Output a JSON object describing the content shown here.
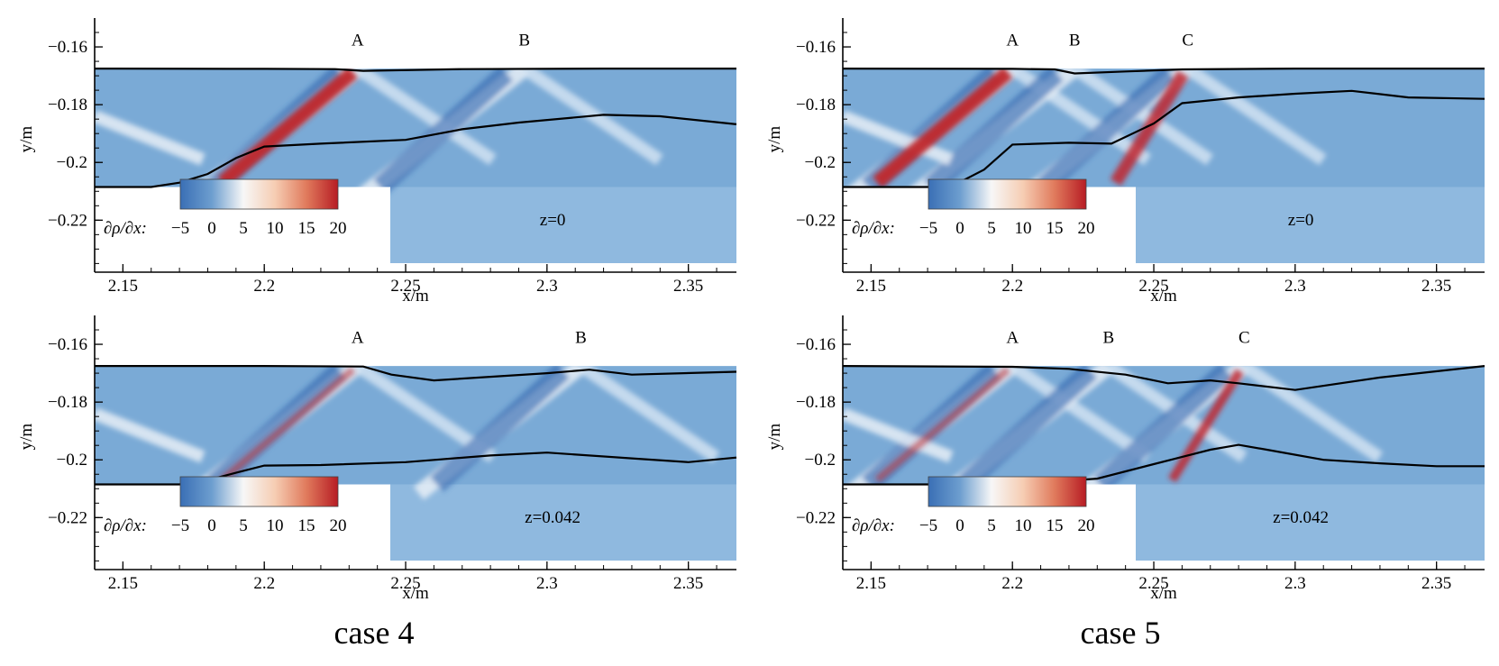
{
  "figure": {
    "captions": [
      "case 4",
      "case 5"
    ]
  },
  "colorbar": {
    "label": "∂ρ/∂x:",
    "ticks": [
      "−5",
      "0",
      "5",
      "10",
      "15",
      "20"
    ],
    "colors": [
      "#3a6fb5",
      "#ffffff",
      "#c0262d"
    ]
  },
  "chart_data": [
    {
      "type": "heatmap",
      "title": "case 4, z=0",
      "annotation": "z=0",
      "xlabel": "x/m",
      "ylabel": "y/m",
      "xlim": [
        2.14,
        2.367
      ],
      "ylim": [
        -0.238,
        -0.15
      ],
      "xticks": [
        2.15,
        2.2,
        2.25,
        2.3,
        2.35
      ],
      "xtick_labels": [
        "2.15",
        "2.2",
        "2.25",
        "2.3",
        "2.35"
      ],
      "yticks": [
        -0.16,
        -0.18,
        -0.2,
        -0.22
      ],
      "ytick_labels": [
        "−0.16",
        "−0.18",
        "−0.2",
        "−0.22"
      ],
      "markers": [
        {
          "label": "A",
          "x": 2.233
        },
        {
          "label": "B",
          "x": 2.292
        }
      ],
      "colorbar_range": [
        -5,
        20
      ],
      "series": [
        {
          "name": "upper boundary",
          "x": [
            2.14,
            2.2,
            2.225,
            2.235,
            2.27,
            2.32,
            2.367
          ],
          "y": [
            -0.1675,
            -0.1676,
            -0.1677,
            -0.1683,
            -0.1677,
            -0.1675,
            -0.1675
          ]
        },
        {
          "name": "lower boundary",
          "x": [
            2.14,
            2.16,
            2.17,
            2.18,
            2.19,
            2.2,
            2.22,
            2.25,
            2.27,
            2.29,
            2.32,
            2.34,
            2.367
          ],
          "y": [
            -0.2085,
            -0.2085,
            -0.207,
            -0.204,
            -0.1985,
            -0.1945,
            -0.1935,
            -0.1922,
            -0.1885,
            -0.1862,
            -0.1835,
            -0.184,
            -0.1868
          ]
        }
      ]
    },
    {
      "type": "heatmap",
      "title": "case 5, z=0",
      "annotation": "z=0",
      "xlabel": "x/m",
      "ylabel": "y/m",
      "xlim": [
        2.14,
        2.367
      ],
      "ylim": [
        -0.238,
        -0.15
      ],
      "xticks": [
        2.15,
        2.2,
        2.25,
        2.3,
        2.35
      ],
      "xtick_labels": [
        "2.15",
        "2.2",
        "2.25",
        "2.3",
        "2.35"
      ],
      "yticks": [
        -0.16,
        -0.18,
        -0.2,
        -0.22
      ],
      "ytick_labels": [
        "−0.16",
        "−0.18",
        "−0.2",
        "−0.22"
      ],
      "markers": [
        {
          "label": "A",
          "x": 2.2
        },
        {
          "label": "B",
          "x": 2.222
        },
        {
          "label": "C",
          "x": 2.262
        }
      ],
      "colorbar_range": [
        -5,
        20
      ],
      "series": [
        {
          "name": "upper boundary",
          "x": [
            2.14,
            2.2,
            2.215,
            2.222,
            2.24,
            2.26,
            2.3,
            2.367
          ],
          "y": [
            -0.1675,
            -0.1676,
            -0.1678,
            -0.1692,
            -0.1685,
            -0.1678,
            -0.1675,
            -0.1675
          ]
        },
        {
          "name": "lower boundary",
          "x": [
            2.14,
            2.17,
            2.18,
            2.19,
            2.2,
            2.22,
            2.235,
            2.25,
            2.26,
            2.28,
            2.3,
            2.32,
            2.34,
            2.367
          ],
          "y": [
            -0.2085,
            -0.2085,
            -0.2075,
            -0.2025,
            -0.1938,
            -0.1932,
            -0.1935,
            -0.1865,
            -0.1795,
            -0.1775,
            -0.1762,
            -0.1752,
            -0.1775,
            -0.178
          ]
        }
      ]
    },
    {
      "type": "heatmap",
      "title": "case 4, z=0.042",
      "annotation": "z=0.042",
      "xlabel": "x/m",
      "ylabel": "y/m",
      "xlim": [
        2.14,
        2.367
      ],
      "ylim": [
        -0.238,
        -0.15
      ],
      "xticks": [
        2.15,
        2.2,
        2.25,
        2.3,
        2.35
      ],
      "xtick_labels": [
        "2.15",
        "2.2",
        "2.25",
        "2.3",
        "2.35"
      ],
      "yticks": [
        -0.16,
        -0.18,
        -0.2,
        -0.22
      ],
      "ytick_labels": [
        "−0.16",
        "−0.18",
        "−0.2",
        "−0.22"
      ],
      "markers": [
        {
          "label": "A",
          "x": 2.233
        },
        {
          "label": "B",
          "x": 2.312
        }
      ],
      "colorbar_range": [
        -5,
        20
      ],
      "series": [
        {
          "name": "upper boundary",
          "x": [
            2.14,
            2.2,
            2.235,
            2.245,
            2.26,
            2.3,
            2.315,
            2.33,
            2.367
          ],
          "y": [
            -0.1675,
            -0.1675,
            -0.1677,
            -0.1705,
            -0.1725,
            -0.17,
            -0.1688,
            -0.1705,
            -0.1695
          ]
        },
        {
          "name": "lower boundary",
          "x": [
            2.14,
            2.17,
            2.18,
            2.19,
            2.2,
            2.22,
            2.25,
            2.28,
            2.3,
            2.33,
            2.35,
            2.367
          ],
          "y": [
            -0.2085,
            -0.2085,
            -0.207,
            -0.2045,
            -0.202,
            -0.2018,
            -0.2008,
            -0.1985,
            -0.1975,
            -0.1995,
            -0.2008,
            -0.1992
          ]
        }
      ]
    },
    {
      "type": "heatmap",
      "title": "case 5, z=0.042",
      "annotation": "z=0.042",
      "xlabel": "x/m",
      "ylabel": "y/m",
      "xlim": [
        2.14,
        2.367
      ],
      "ylim": [
        -0.238,
        -0.15
      ],
      "xticks": [
        2.15,
        2.2,
        2.25,
        2.3,
        2.35
      ],
      "xtick_labels": [
        "2.15",
        "2.2",
        "2.25",
        "2.3",
        "2.35"
      ],
      "yticks": [
        -0.16,
        -0.18,
        -0.2,
        -0.22
      ],
      "ytick_labels": [
        "−0.16",
        "−0.18",
        "−0.2",
        "−0.22"
      ],
      "markers": [
        {
          "label": "A",
          "x": 2.2
        },
        {
          "label": "B",
          "x": 2.234
        },
        {
          "label": "C",
          "x": 2.282
        }
      ],
      "colorbar_range": [
        -5,
        20
      ],
      "series": [
        {
          "name": "upper boundary",
          "x": [
            2.14,
            2.2,
            2.22,
            2.24,
            2.255,
            2.27,
            2.28,
            2.3,
            2.33,
            2.367
          ],
          "y": [
            -0.1675,
            -0.1678,
            -0.1685,
            -0.1705,
            -0.1735,
            -0.1725,
            -0.1735,
            -0.1758,
            -0.1715,
            -0.1675
          ]
        },
        {
          "name": "lower boundary",
          "x": [
            2.14,
            2.2,
            2.23,
            2.25,
            2.27,
            2.28,
            2.29,
            2.31,
            2.33,
            2.35,
            2.367
          ],
          "y": [
            -0.2085,
            -0.2085,
            -0.2065,
            -0.2015,
            -0.1965,
            -0.1948,
            -0.1965,
            -0.2,
            -0.2012,
            -0.2022,
            -0.2022
          ]
        }
      ]
    }
  ]
}
